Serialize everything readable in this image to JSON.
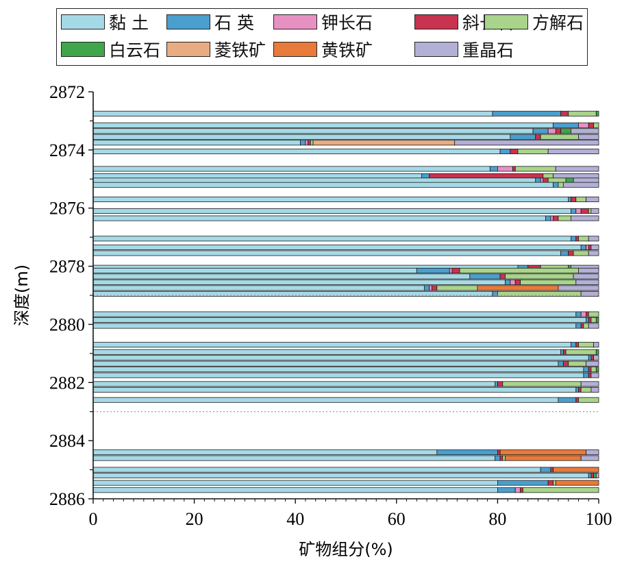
{
  "chart_data": {
    "type": "bar",
    "orientation": "horizontal-stacked",
    "xlabel": "矿物组分(%)",
    "ylabel": "深度(m)",
    "xlim": [
      0,
      100
    ],
    "ylim": [
      2872,
      2886
    ],
    "x_ticks": [
      "0",
      "20",
      "40",
      "60",
      "80",
      "100"
    ],
    "y_ticks": [
      "2872",
      "2874",
      "2876",
      "2878",
      "2880",
      "2882",
      "2884",
      "2886"
    ],
    "x_tick_values": [
      0,
      20,
      40,
      60,
      80,
      100
    ],
    "y_tick_values": [
      2872,
      2874,
      2876,
      2878,
      2880,
      2882,
      2884,
      2886
    ],
    "boundary_depths": [
      2879.0,
      2883.0
    ],
    "legend": {
      "placement": "top",
      "items": [
        {
          "name": "黏 土",
          "color": "#a6d9e6"
        },
        {
          "name": "石 英",
          "color": "#4a9fce"
        },
        {
          "name": "钾长石",
          "color": "#e791c3"
        },
        {
          "name": "斜长石",
          "color": "#c8334f"
        },
        {
          "name": "方解石",
          "color": "#a9d48b"
        },
        {
          "name": "白云石",
          "color": "#3fa64b"
        },
        {
          "name": "菱铁矿",
          "color": "#e9ac82"
        },
        {
          "name": "黄铁矿",
          "color": "#e87a3a"
        },
        {
          "name": "重晶石",
          "color": "#b3b0d6"
        }
      ]
    },
    "samples": [
      {
        "depth": 2872.75,
        "values": [
          79,
          13.5,
          0,
          1.5,
          5.5,
          0.5,
          0,
          0,
          0
        ]
      },
      {
        "depth": 2873.15,
        "values": [
          91,
          5,
          2,
          1,
          1,
          0,
          0,
          0,
          0
        ]
      },
      {
        "depth": 2873.35,
        "values": [
          87,
          3,
          1.5,
          1,
          0,
          2,
          0,
          0,
          5.5
        ]
      },
      {
        "depth": 2873.55,
        "values": [
          82.5,
          5,
          0,
          1,
          7.5,
          0,
          0,
          0,
          4
        ]
      },
      {
        "depth": 2873.75,
        "values": [
          41,
          1,
          0.5,
          0.5,
          0.5,
          0,
          28,
          0,
          28.5
        ]
      },
      {
        "depth": 2874.05,
        "values": [
          80.5,
          2,
          0,
          1.5,
          6,
          0,
          0,
          0,
          10
        ]
      },
      {
        "depth": 2874.65,
        "values": [
          78.5,
          1.5,
          3,
          0.5,
          8,
          0,
          0,
          0,
          8.5
        ]
      },
      {
        "depth": 2874.9,
        "values": [
          65,
          1.5,
          0,
          22.5,
          2,
          0,
          0,
          0,
          9
        ]
      },
      {
        "depth": 2875.05,
        "values": [
          87.5,
          1,
          0.5,
          1,
          3.5,
          1.5,
          0,
          0,
          5
        ]
      },
      {
        "depth": 2875.2,
        "values": [
          91,
          1,
          0,
          0,
          1,
          0,
          0,
          0,
          7
        ]
      },
      {
        "depth": 2875.7,
        "values": [
          94,
          0.5,
          0,
          1,
          2,
          0,
          0,
          0,
          2.5
        ]
      },
      {
        "depth": 2876.1,
        "values": [
          94.5,
          1,
          1,
          1.5,
          0.5,
          0,
          0,
          0,
          1.5
        ]
      },
      {
        "depth": 2876.35,
        "values": [
          89.5,
          1,
          0.5,
          1,
          2.5,
          0,
          0,
          0,
          5.5
        ]
      },
      {
        "depth": 2877.05,
        "values": [
          94.5,
          1,
          0,
          0.5,
          2,
          0,
          0,
          0,
          2
        ]
      },
      {
        "depth": 2877.35,
        "values": [
          96.5,
          1,
          0.5,
          0.5,
          0,
          0,
          0,
          0,
          1.5
        ]
      },
      {
        "depth": 2877.55,
        "values": [
          92.5,
          1.5,
          0,
          1,
          3,
          0,
          0,
          0,
          2
        ]
      },
      {
        "depth": 2878.05,
        "values": [
          84,
          2,
          0,
          2.5,
          5.5,
          0.5,
          0,
          0,
          5.5
        ]
      },
      {
        "depth": 2878.15,
        "values": [
          64,
          6.5,
          0.5,
          1.5,
          23.5,
          0,
          0,
          0,
          4
        ]
      },
      {
        "depth": 2878.35,
        "values": [
          74.5,
          6,
          0,
          1,
          13.5,
          0,
          0,
          0,
          5
        ]
      },
      {
        "depth": 2878.55,
        "values": [
          81.5,
          1,
          1,
          1,
          11,
          0,
          0,
          0,
          4.5
        ]
      },
      {
        "depth": 2878.75,
        "values": [
          65.5,
          1,
          0.5,
          1,
          8,
          0,
          0,
          16,
          8
        ]
      },
      {
        "depth": 2878.95,
        "values": [
          79,
          1,
          0,
          0,
          16.5,
          0,
          0,
          0,
          3.5
        ]
      },
      {
        "depth": 2879.65,
        "values": [
          95.5,
          1,
          1,
          0.5,
          2,
          0,
          0,
          0,
          0
        ]
      },
      {
        "depth": 2879.85,
        "values": [
          97.5,
          0.5,
          0,
          0.5,
          1,
          0.5,
          0,
          0,
          0
        ]
      },
      {
        "depth": 2880.05,
        "values": [
          95.5,
          1,
          0,
          0.5,
          1,
          0,
          0,
          0,
          2
        ]
      },
      {
        "depth": 2880.7,
        "values": [
          94.5,
          1,
          0,
          0.5,
          3,
          0,
          0,
          0,
          1
        ]
      },
      {
        "depth": 2880.95,
        "values": [
          92.5,
          0.5,
          0,
          0.5,
          6,
          0.5,
          0,
          0,
          0
        ]
      },
      {
        "depth": 2881.15,
        "values": [
          98,
          0.5,
          0,
          0.5,
          0,
          0,
          0,
          0,
          1
        ]
      },
      {
        "depth": 2881.35,
        "values": [
          92,
          1,
          0,
          1,
          3.5,
          0,
          0,
          0,
          2.5
        ]
      },
      {
        "depth": 2881.55,
        "values": [
          97,
          1,
          0,
          0.5,
          1,
          0.5,
          0,
          0,
          0
        ]
      },
      {
        "depth": 2881.75,
        "values": [
          97,
          1,
          0,
          0.5,
          0,
          0,
          0,
          0,
          1.5
        ]
      },
      {
        "depth": 2882.05,
        "values": [
          79.5,
          0.5,
          0,
          1,
          15.5,
          0,
          0,
          0,
          3.5
        ]
      },
      {
        "depth": 2882.25,
        "values": [
          95.5,
          0.5,
          0,
          0.5,
          2,
          0,
          0,
          0,
          1.5
        ]
      },
      {
        "depth": 2882.6,
        "values": [
          92,
          3.5,
          0,
          0.5,
          4,
          0,
          0,
          0,
          0
        ]
      },
      {
        "depth": 2884.4,
        "values": [
          68,
          12,
          0,
          0.5,
          0,
          0,
          0,
          17,
          2.5
        ]
      },
      {
        "depth": 2884.6,
        "values": [
          79.5,
          1,
          0,
          0.5,
          0.5,
          0,
          0,
          15,
          3.5
        ]
      },
      {
        "depth": 2885.0,
        "values": [
          88.5,
          2,
          0,
          0.5,
          0,
          0,
          0,
          9,
          0
        ]
      },
      {
        "depth": 2885.2,
        "values": [
          98,
          0.5,
          0,
          0.5,
          0,
          0.5,
          0,
          0,
          0.5
        ]
      },
      {
        "depth": 2885.45,
        "values": [
          80,
          10,
          0,
          1,
          0.5,
          0,
          0,
          8.5,
          0
        ]
      },
      {
        "depth": 2885.7,
        "values": [
          80,
          3.5,
          1,
          0.5,
          15,
          0,
          0,
          0,
          0
        ]
      }
    ]
  }
}
